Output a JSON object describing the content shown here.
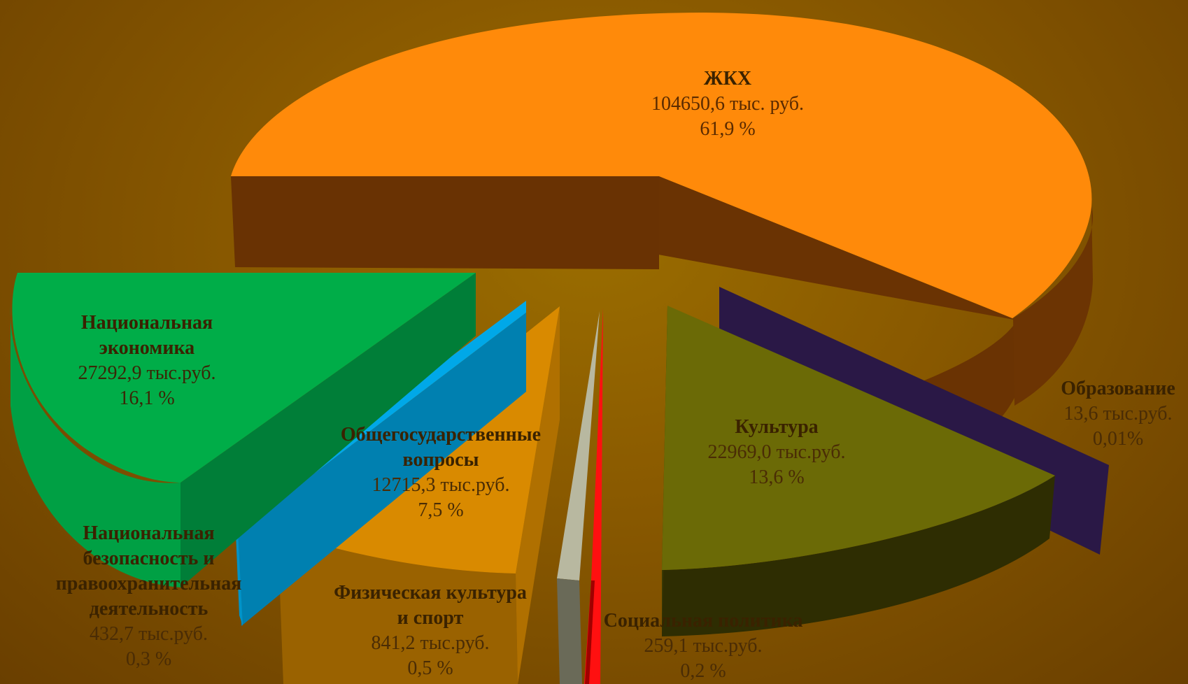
{
  "chart_data": {
    "type": "pie",
    "exploded": true,
    "three_d": true,
    "slices": [
      {
        "name": "ЖКХ",
        "value": "104650,6 тыс. руб.",
        "percent": "61,9 %",
        "amount": 104650.6,
        "share": 61.9,
        "color": "#ff8a0a",
        "side_color": "#6a3303"
      },
      {
        "name": "Образование",
        "value": "13,6 тыс.руб.",
        "percent": "0,01%",
        "amount": 13.6,
        "share": 0.01,
        "color": "#2a1846",
        "side_color": "#1e1035"
      },
      {
        "name": "Культура",
        "value": "22969,0 тыс.руб.",
        "percent": "13,6 %",
        "amount": 22969.0,
        "share": 13.6,
        "color": "#6b6a06",
        "side_color": "#3a3903"
      },
      {
        "name": "Социальная политика",
        "value": "259,1 тыс.руб.",
        "percent": "0,2 %",
        "amount": 259.1,
        "share": 0.2,
        "color": "#ff1010",
        "side_color": "#a00000"
      },
      {
        "name": "Физическая культура и спорт",
        "value": "841,2 тыс.руб.",
        "percent": "0,5 %",
        "amount": 841.2,
        "share": 0.5,
        "color": "#b8b8a0",
        "side_color": "#707060"
      },
      {
        "name": "Общегосударственные вопросы",
        "value": "12715,3 тыс.руб.",
        "percent": "7,5 %",
        "amount": 12715.3,
        "share": 7.5,
        "color": "#d98a00",
        "side_color": "#9a6200"
      },
      {
        "name": "Национальная безопасность и правоохранительная деятельность",
        "value": "432,7 тыс.руб.",
        "percent": "0,3  %",
        "amount": 432.7,
        "share": 0.3,
        "color": "#00a8e8",
        "side_color": "#0080b0"
      },
      {
        "name": "Национальная экономика",
        "value": "27292,9 тыс.руб.",
        "percent": "16,1 %",
        "amount": 27292.9,
        "share": 16.1,
        "color": "#00ad48",
        "side_color": "#00803a"
      }
    ]
  },
  "labels": {
    "zhkh": {
      "name": "ЖКХ",
      "value": "104650,6 тыс. руб.",
      "percent": "61,9 %"
    },
    "obrazovanie": {
      "name": "Образование",
      "value": "13,6 тыс.руб.",
      "percent": "0,01%"
    },
    "kultura": {
      "name": "Культура",
      "value": "22969,0 тыс.руб.",
      "percent": "13,6 %"
    },
    "social": {
      "name": "Социальная политика",
      "value": "259,1 тыс.руб.",
      "percent": "0,2 %"
    },
    "fizkult": {
      "name_line1": "Физическая культура",
      "name_line2": "и спорт",
      "value": "841,2 тыс.руб.",
      "percent": "0,5 %"
    },
    "obshchegos": {
      "name_line1": "Общегосударственные",
      "name_line2": "вопросы",
      "value": "12715,3 тыс.руб.",
      "percent": "7,5 %"
    },
    "natbez": {
      "name_line1": "Национальная",
      "name_line2": "безопасность и",
      "name_line3": "правоохранительная",
      "name_line4": "деятельность",
      "value": "432,7 тыс.руб.",
      "percent": "0,3  %"
    },
    "natekon": {
      "name_line1": "Национальная",
      "name_line2": "экономика",
      "value": "27292,9 тыс.руб.",
      "percent": "16,1 %"
    }
  }
}
